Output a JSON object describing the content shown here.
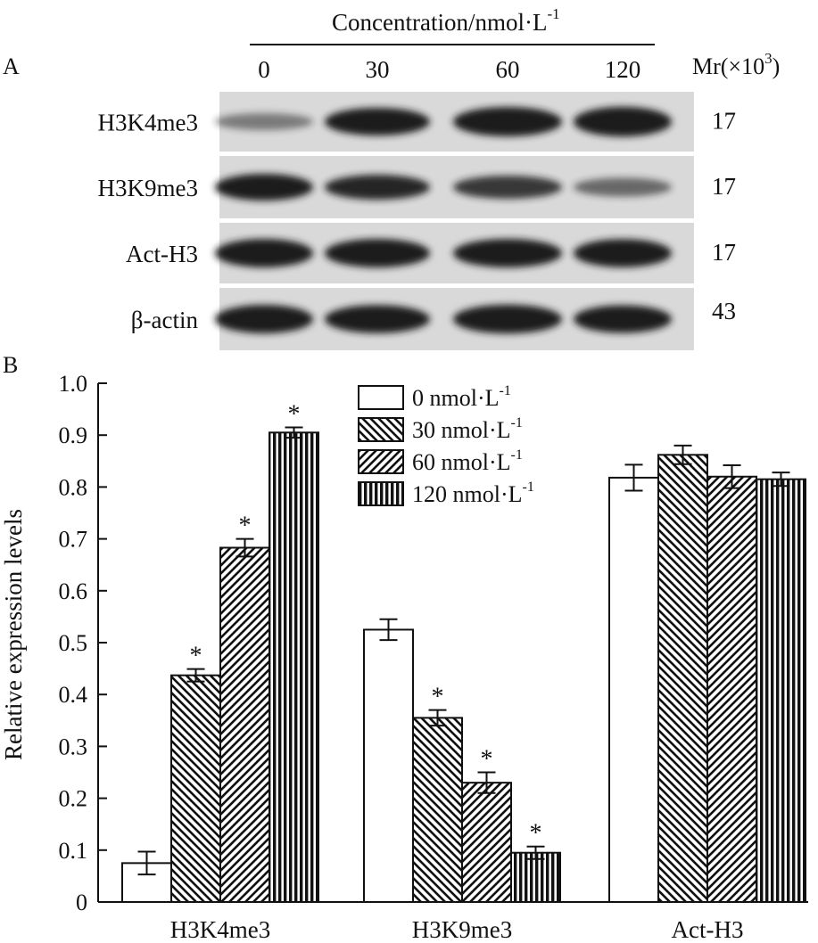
{
  "panel_a": {
    "label": "A",
    "concentration_title": "Concentration/nmol·L",
    "concentration_sup": "-1",
    "lanes": [
      "0",
      "30",
      "60",
      "120"
    ],
    "mr_label": "Mr(×10",
    "mr_sup": "3",
    "mr_close": ")",
    "blots": [
      {
        "name": "H3K4me3",
        "mr": "17",
        "intensity": [
          0.25,
          0.85,
          0.95,
          0.97
        ]
      },
      {
        "name": "H3K9me3",
        "mr": "17",
        "intensity": [
          0.8,
          0.7,
          0.6,
          0.35
        ]
      },
      {
        "name": "Act-H3",
        "mr": "17",
        "intensity": [
          0.9,
          0.9,
          0.9,
          0.88
        ]
      },
      {
        "name": "β-actin",
        "mr": "43",
        "intensity": [
          0.9,
          0.88,
          0.92,
          0.85
        ]
      }
    ],
    "colors": {
      "background": "#d9d9d9",
      "band": "#1a1a1a"
    }
  },
  "chart_data": {
    "panel_label": "B",
    "type": "bar",
    "categories": [
      "H3K4me3",
      "H3K9me3",
      "Act-H3"
    ],
    "ylabel": "Relative expression levels",
    "ylim": [
      0,
      1.0
    ],
    "yticks": [
      "0",
      "0.1",
      "0.2",
      "0.3",
      "0.4",
      "0.5",
      "0.6",
      "0.7",
      "0.8",
      "0.9",
      "1.0"
    ],
    "legend_position": "top-center",
    "series": [
      {
        "name": "0 nmol·L",
        "sup": "-1",
        "pattern": "white",
        "values": [
          0.075,
          0.525,
          0.818
        ],
        "errors": [
          0.022,
          0.02,
          0.025
        ],
        "significant": [
          false,
          false,
          false
        ]
      },
      {
        "name": "30 nmol·L",
        "sup": "-1",
        "pattern": "backslash",
        "values": [
          0.437,
          0.355,
          0.862
        ],
        "errors": [
          0.012,
          0.015,
          0.018
        ],
        "significant": [
          true,
          true,
          false
        ]
      },
      {
        "name": "60 nmol·L",
        "sup": "-1",
        "pattern": "slash",
        "values": [
          0.683,
          0.23,
          0.82
        ],
        "errors": [
          0.017,
          0.02,
          0.022
        ],
        "significant": [
          true,
          true,
          false
        ]
      },
      {
        "name": "120 nmol·L",
        "sup": "-1",
        "pattern": "vertical",
        "values": [
          0.905,
          0.095,
          0.815
        ],
        "errors": [
          0.01,
          0.012,
          0.013
        ],
        "significant": [
          true,
          true,
          false
        ]
      }
    ],
    "significance_marker": "*"
  }
}
